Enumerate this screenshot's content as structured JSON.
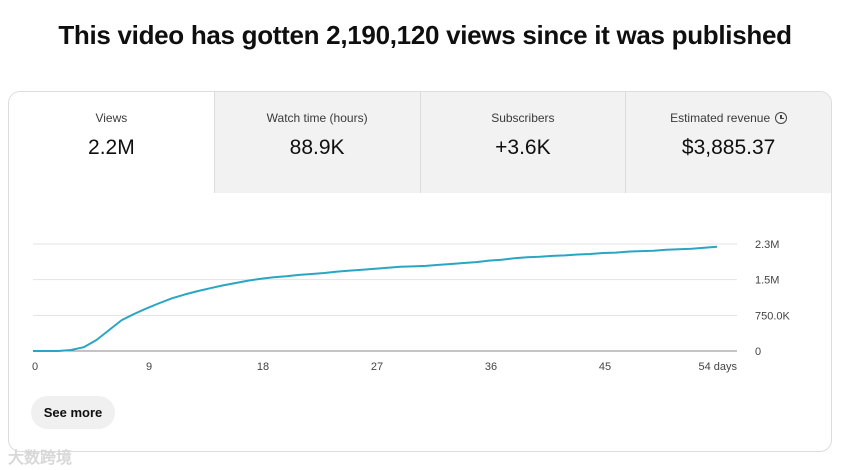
{
  "headline": "This video has gotten 2,190,120 views since it was published",
  "metrics": [
    {
      "label": "Views",
      "value": "2.2M"
    },
    {
      "label": "Watch time (hours)",
      "value": "88.9K"
    },
    {
      "label": "Subscribers",
      "value": "+3.6K"
    },
    {
      "label": "Estimated revenue",
      "value": "$3,885.37",
      "icon": "clock-icon"
    }
  ],
  "chart_data": {
    "type": "line",
    "x": [
      0,
      1,
      2,
      3,
      4,
      5,
      6,
      7,
      8,
      9,
      10,
      11,
      12,
      13,
      14,
      15,
      16,
      17,
      18,
      19,
      20,
      21,
      22,
      23,
      24,
      25,
      26,
      27,
      28,
      29,
      30,
      31,
      32,
      33,
      34,
      35,
      36,
      37,
      38,
      39,
      40,
      41,
      42,
      43,
      44,
      45,
      46,
      47,
      48,
      49,
      50,
      51,
      52,
      53,
      54
    ],
    "series": [
      {
        "values": [
          0,
          0,
          0,
          20000,
          80000,
          230000,
          440000,
          650000,
          780000,
          900000,
          1010000,
          1110000,
          1190000,
          1260000,
          1320000,
          1380000,
          1430000,
          1480000,
          1520000,
          1550000,
          1570000,
          1600000,
          1620000,
          1640000,
          1670000,
          1690000,
          1710000,
          1730000,
          1750000,
          1770000,
          1780000,
          1790000,
          1810000,
          1830000,
          1850000,
          1870000,
          1900000,
          1920000,
          1950000,
          1970000,
          1980000,
          2000000,
          2010000,
          2030000,
          2040000,
          2060000,
          2070000,
          2090000,
          2100000,
          2110000,
          2130000,
          2140000,
          2150000,
          2170000,
          2190120
        ]
      }
    ],
    "x_ticks": [
      "0",
      "9",
      "18",
      "27",
      "36",
      "45",
      "54 days"
    ],
    "x_tick_values": [
      0,
      9,
      18,
      27,
      36,
      45,
      54
    ],
    "y_ticks": [
      "0",
      "750.0K",
      "1.5M",
      "2.3M"
    ],
    "y_tick_values": [
      0,
      750000,
      1500000,
      2250000
    ],
    "xlim": [
      0,
      54
    ],
    "ylim": [
      0,
      2250000
    ],
    "grid": true,
    "color": "#2ba5c4"
  },
  "actions": {
    "see_more": "See more"
  },
  "watermark": "大数跨境"
}
